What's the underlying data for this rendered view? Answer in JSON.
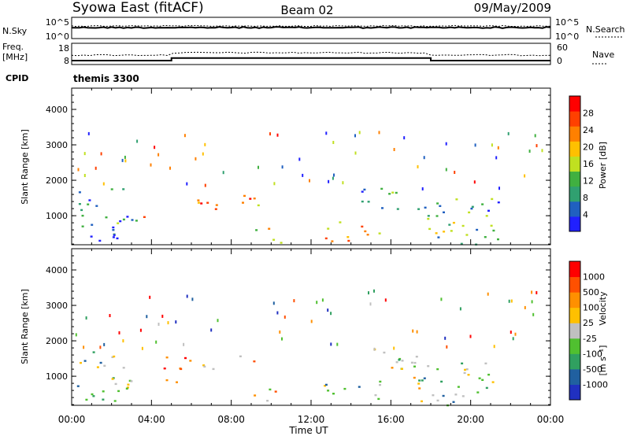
{
  "header": {
    "title_left": "Syowa East (fitACF)",
    "title_center": "Beam 02",
    "title_right": "09/May/2009"
  },
  "noise_panel": {
    "left_label": "N.Sky",
    "right_label": "N.Search",
    "left_ticks": [
      "10^5",
      "10^0"
    ],
    "right_ticks": [
      "10^5",
      "10^0"
    ]
  },
  "freq_panel": {
    "left_label_1": "Freq.",
    "left_label_2": "[MHz]",
    "right_label": "Nave",
    "left_ticks": [
      "18",
      "8"
    ],
    "right_ticks": [
      "60",
      "0"
    ]
  },
  "cpid": {
    "label": "CPID",
    "value": "themis 3300"
  },
  "power_panel": {
    "ylabel": "Slant Range [km]",
    "yticks": [
      "1000",
      "2000",
      "3000",
      "4000"
    ],
    "colorbar_label": "Power [dB]",
    "colorbar_ticks": [
      "4",
      "8",
      "12",
      "16",
      "20",
      "24",
      "28"
    ],
    "colorbar_colors": [
      "#2020ff",
      "#2060c0",
      "#30a070",
      "#40b040",
      "#c0e020",
      "#ffc000",
      "#ff8000",
      "#ff4000",
      "#ff0000"
    ]
  },
  "velocity_panel": {
    "ylabel": "Slant Range [km]",
    "yticks": [
      "1000",
      "2000",
      "3000",
      "4000"
    ],
    "colorbar_label": "Velocity",
    "colorbar_unit": "[m s⁻¹]",
    "colorbar_ticks": [
      "1000",
      "500",
      "100",
      "25",
      "-25",
      "-100",
      "-500",
      "-1000"
    ],
    "colorbar_colors": [
      "#2030c0",
      "#2060a0",
      "#30a060",
      "#50c030",
      "#c0c0c0",
      "#ffc000",
      "#ff9000",
      "#ff5000",
      "#ff0000"
    ]
  },
  "xaxis": {
    "label": "Time UT",
    "ticks": [
      "00:00",
      "04:00",
      "08:00",
      "12:00",
      "16:00",
      "20:00",
      "00:00"
    ]
  },
  "chart_data": {
    "type": "heatmap",
    "title": "Syowa East (fitACF)  Beam 02  09/May/2009",
    "xlabel": "Time UT",
    "ylabel": "Slant Range [km]",
    "xlim": [
      0,
      24
    ],
    "ylim": [
      180,
      4600
    ],
    "panels": [
      {
        "name": "Power [dB]",
        "range": [
          3,
          30
        ]
      },
      {
        "name": "Velocity [m s-1]",
        "range": [
          -1000,
          1000
        ]
      }
    ],
    "freq_mhz_series": {
      "x": [
        0,
        5.0,
        5.0,
        18.0,
        18.0,
        24
      ],
      "values": [
        10.5,
        10.5,
        12.5,
        12.5,
        10.5,
        10.5
      ]
    },
    "echo_regions": [
      {
        "t_start": 0.2,
        "t_end": 3.0,
        "range_min": 300,
        "range_max": 1800,
        "power_db": 8,
        "velocity": 200
      },
      {
        "t_start": 1.5,
        "t_end": 5.5,
        "range_min": 800,
        "range_max": 1000,
        "power_db": 20,
        "velocity": -300
      },
      {
        "t_start": 4.5,
        "t_end": 9.5,
        "range_min": 1200,
        "range_max": 1600,
        "power_db": 24,
        "velocity": -500
      },
      {
        "t_start": 9.0,
        "t_end": 10.5,
        "range_min": 200,
        "range_max": 700,
        "power_db": 16,
        "velocity": -100
      },
      {
        "t_start": 12.5,
        "t_end": 15.5,
        "range_min": 300,
        "range_max": 900,
        "power_db": 20,
        "velocity": 100
      },
      {
        "t_start": 14.5,
        "t_end": 17.5,
        "range_min": 1200,
        "range_max": 1800,
        "power_db": 12,
        "velocity": 100
      },
      {
        "t_start": 17.0,
        "t_end": 21.5,
        "range_min": 200,
        "range_max": 1500,
        "power_db": 12,
        "velocity": 100
      }
    ]
  }
}
